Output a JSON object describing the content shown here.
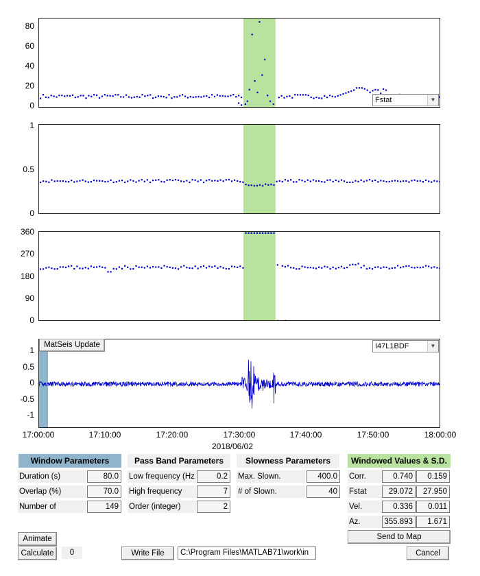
{
  "plots": {
    "fstat": {
      "y_ticks": [
        "80",
        "60",
        "40",
        "20",
        "0"
      ],
      "ylim": [
        0,
        90
      ],
      "dropdown": "Fstat"
    },
    "corr": {
      "y_ticks": [
        "1",
        "0.5",
        "0"
      ],
      "ylim": [
        0,
        1
      ]
    },
    "azimuth": {
      "y_ticks": [
        "360",
        "270",
        "180",
        "90",
        "0"
      ],
      "ylim": [
        0,
        360
      ]
    },
    "waveform": {
      "y_ticks": [
        "1",
        "0.5",
        "0",
        "-0.5",
        "-1"
      ],
      "ylim": [
        -1.3,
        1.3
      ],
      "button": "MatSeis Update",
      "dropdown": "I47L1BDF"
    }
  },
  "x_axis": {
    "ticks": [
      "17:00:00",
      "17:10:00",
      "17:20:00",
      "17:30:00",
      "17:40:00",
      "17:50:00",
      "18:00:00"
    ],
    "date_label": "2018/06/02",
    "highlight_start_min": 30.5,
    "highlight_end_min": 35.3
  },
  "chart_data": {
    "type": "scatter",
    "x_unit": "time",
    "x_ticks": [
      "17:00:00",
      "17:10:00",
      "17:20:00",
      "17:30:00",
      "17:40:00",
      "17:50:00",
      "18:00:00"
    ],
    "series": [
      {
        "panel": "fstat",
        "ylim": [
          0,
          90
        ],
        "y_values_note": "baseline ~10 with peak 88 near 17:32"
      },
      {
        "panel": "corr",
        "ylim": [
          0,
          1
        ]
      },
      {
        "panel": "azimuth",
        "ylim": [
          0,
          360
        ]
      }
    ]
  },
  "window_params": {
    "title": "Window Parameters",
    "rows": [
      {
        "label": "Duration (s)",
        "value": "80.0"
      },
      {
        "label": "Overlap (%)",
        "value": "70.0"
      },
      {
        "label": "Number of",
        "value": "149"
      }
    ]
  },
  "passband_params": {
    "title": "Pass Band Parameters",
    "rows": [
      {
        "label": "Low frequency (Hz",
        "value": "0.2"
      },
      {
        "label": "High frequency",
        "value": "7"
      },
      {
        "label": "Order (integer)",
        "value": "2"
      }
    ]
  },
  "slowness_params": {
    "title": "Slowness Parameters",
    "rows": [
      {
        "label": "Max. Slown.",
        "value": "400.0"
      },
      {
        "label": "# of Slown.",
        "value": "40"
      }
    ]
  },
  "windowed": {
    "title": "Windowed Values & S.D.",
    "rows": [
      {
        "label": "Corr.",
        "value": "0.740",
        "sd": "0.159"
      },
      {
        "label": "Fstat",
        "value": "29.072",
        "sd": "27.950"
      },
      {
        "label": "Vel.",
        "value": "0.336",
        "sd": "0.011"
      },
      {
        "label": "Az.",
        "value": "355.893",
        "sd": "1.671"
      }
    ],
    "send_button": "Send to Map"
  },
  "controls": {
    "animate": "Animate",
    "calculate": "Calculate",
    "counter": "0",
    "write_file": "Write File",
    "path": "C:\\Program Files\\MATLAB71\\work\\in",
    "cancel": "Cancel"
  },
  "colors": {
    "points": "#0000cc",
    "highlight": "#b9e29f",
    "window_header": "#8fb4cc",
    "windowed_header": "#b9e29f"
  }
}
